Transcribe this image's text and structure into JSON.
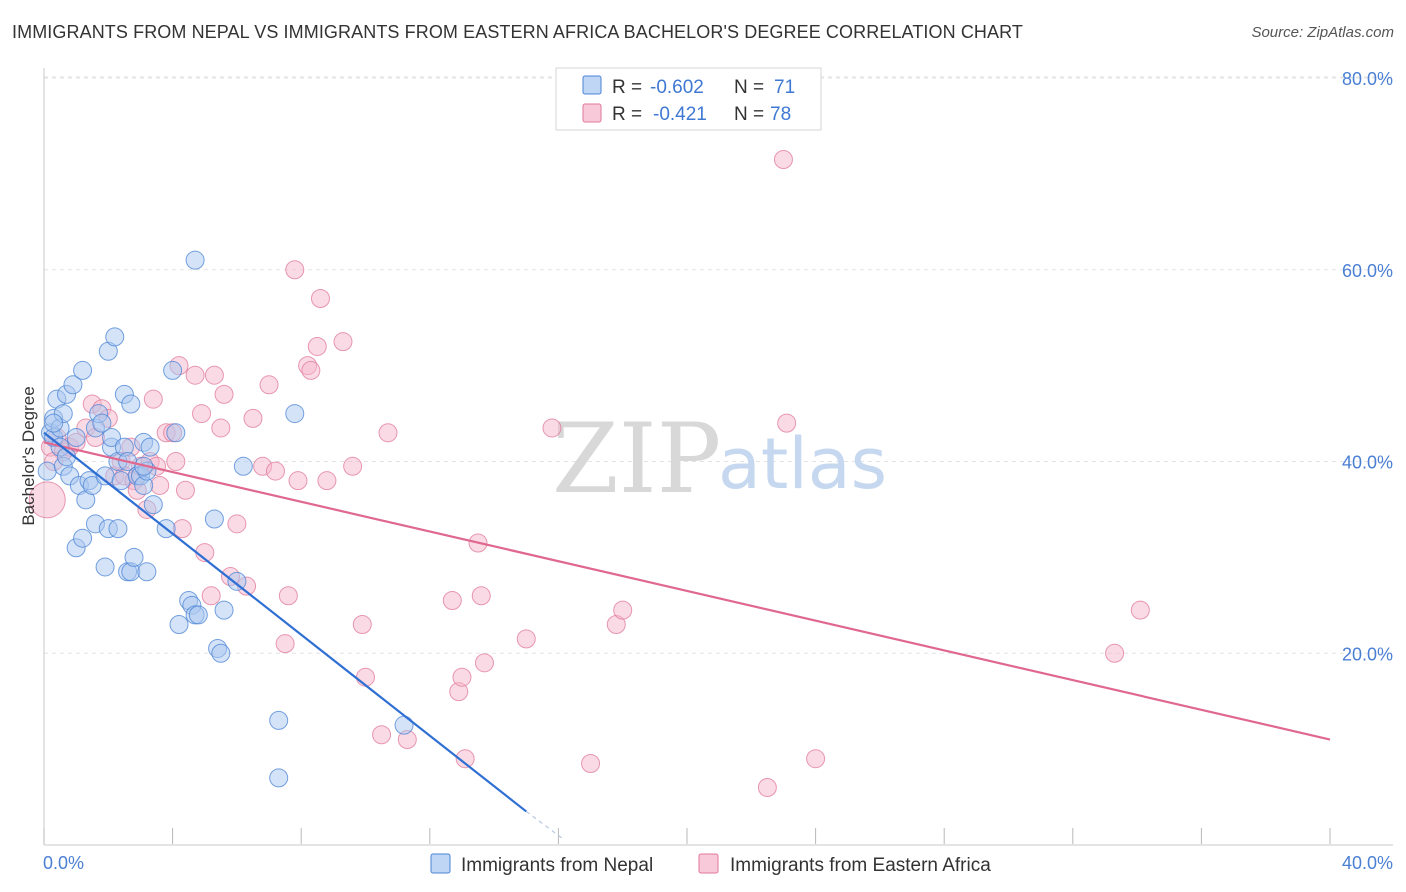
{
  "title": "IMMIGRANTS FROM NEPAL VS IMMIGRANTS FROM EASTERN AFRICA BACHELOR'S DEGREE CORRELATION CHART",
  "source": "Source: ZipAtlas.com",
  "watermark": {
    "zip": "ZIP",
    "atlas": "atlas"
  },
  "colors": {
    "nepal_fill": "#a9c8f0",
    "nepal_stroke": "#4a83d6",
    "nepal_line": "#2f6fd4",
    "africa_fill": "#f6b8cc",
    "africa_stroke": "#e07898",
    "africa_line": "#e0688f",
    "grid": "#e3e3e3",
    "tick_text": "#4a7fd4"
  },
  "legend": {
    "rows": [
      {
        "r_label": "R =",
        "r_value": "-0.602",
        "n_label": "N =",
        "n_value": "71"
      },
      {
        "r_label": "R =",
        "r_value": "-0.421",
        "n_label": "N =",
        "n_value": "78"
      }
    ]
  },
  "chart_data": {
    "type": "scatter",
    "title": "IMMIGRANTS FROM NEPAL VS IMMIGRANTS FROM EASTERN AFRICA BACHELOR'S DEGREE CORRELATION CHART",
    "xlabel": "",
    "ylabel": "Bachelor's Degree",
    "xlim": [
      0,
      40
    ],
    "ylim": [
      0,
      80
    ],
    "x_tick_labels": [
      "0.0%",
      "40.0%"
    ],
    "y_ticks": [
      20,
      40,
      60,
      80
    ],
    "y_tick_labels": [
      "20.0%",
      "40.0%",
      "60.0%",
      "80.0%"
    ],
    "series": [
      {
        "name": "Immigrants from Nepal",
        "r": -0.602,
        "n": 71,
        "trend": {
          "x0": 0.0,
          "y0": 43.0,
          "x1": 15.0,
          "y1": 3.5,
          "dash_to_x": 16.2,
          "dash_to_y": 0.5
        },
        "points": [
          [
            0.1,
            39.0,
            1
          ],
          [
            0.2,
            43.0,
            1
          ],
          [
            0.3,
            42.5,
            1
          ],
          [
            0.3,
            44.5,
            1
          ],
          [
            0.4,
            46.5,
            1
          ],
          [
            0.5,
            43.5,
            1
          ],
          [
            0.5,
            41.5,
            1
          ],
          [
            0.6,
            45.0,
            1
          ],
          [
            0.6,
            39.5,
            1
          ],
          [
            0.7,
            47.0,
            1
          ],
          [
            0.7,
            40.5,
            1
          ],
          [
            0.8,
            38.5,
            1
          ],
          [
            0.9,
            48.0,
            1
          ],
          [
            1.0,
            42.5,
            1
          ],
          [
            1.0,
            31.0,
            1
          ],
          [
            1.1,
            37.5,
            1
          ],
          [
            1.2,
            49.5,
            1
          ],
          [
            1.2,
            32.0,
            1
          ],
          [
            1.3,
            36.0,
            1
          ],
          [
            1.4,
            38.0,
            1
          ],
          [
            1.5,
            37.5,
            1
          ],
          [
            1.6,
            43.5,
            1
          ],
          [
            1.6,
            33.5,
            1
          ],
          [
            1.7,
            45.0,
            1
          ],
          [
            1.8,
            44.0,
            1
          ],
          [
            1.9,
            38.5,
            1
          ],
          [
            1.9,
            29.0,
            1
          ],
          [
            2.0,
            33.0,
            1
          ],
          [
            2.0,
            51.5,
            1
          ],
          [
            2.1,
            41.5,
            1
          ],
          [
            2.1,
            42.5,
            1
          ],
          [
            2.2,
            53.0,
            1
          ],
          [
            2.3,
            40.0,
            1
          ],
          [
            2.3,
            33.0,
            1
          ],
          [
            2.4,
            38.0,
            1
          ],
          [
            2.5,
            47.0,
            1
          ],
          [
            2.5,
            41.5,
            1
          ],
          [
            2.6,
            28.5,
            1
          ],
          [
            2.6,
            40.0,
            1
          ],
          [
            2.7,
            46.0,
            1
          ],
          [
            2.7,
            28.5,
            1
          ],
          [
            2.8,
            30.0,
            1
          ],
          [
            2.9,
            38.5,
            1
          ],
          [
            3.0,
            38.5,
            1
          ],
          [
            3.1,
            37.5,
            1
          ],
          [
            3.2,
            39.0,
            1
          ],
          [
            3.1,
            39.5,
            1
          ],
          [
            3.2,
            28.5,
            1
          ],
          [
            3.1,
            42.0,
            1
          ],
          [
            3.3,
            41.5,
            1
          ],
          [
            3.4,
            35.5,
            1
          ],
          [
            3.8,
            33.0,
            1
          ],
          [
            4.0,
            49.5,
            1
          ],
          [
            4.1,
            43.0,
            1
          ],
          [
            4.2,
            23.0,
            1
          ],
          [
            4.5,
            25.5,
            1
          ],
          [
            4.6,
            25.0,
            1
          ],
          [
            4.7,
            24.0,
            1
          ],
          [
            4.8,
            24.0,
            1
          ],
          [
            4.7,
            61.0,
            1
          ],
          [
            5.3,
            34.0,
            1
          ],
          [
            5.4,
            20.5,
            1
          ],
          [
            5.5,
            20.0,
            1
          ],
          [
            5.6,
            24.5,
            1
          ],
          [
            6.0,
            27.5,
            1
          ],
          [
            6.2,
            39.5,
            1
          ],
          [
            7.3,
            13.0,
            1
          ],
          [
            7.3,
            7.0,
            1
          ],
          [
            7.8,
            45.0,
            1
          ],
          [
            11.2,
            12.5,
            1
          ],
          [
            0.3,
            44.0,
            1
          ]
        ]
      },
      {
        "name": "Immigrants from Eastern Africa",
        "r": -0.421,
        "n": 78,
        "trend": {
          "x0": 0.0,
          "y0": 42.0,
          "x1": 40.0,
          "y1": 11.0
        },
        "points": [
          [
            0.1,
            36.0,
            3
          ],
          [
            0.2,
            41.5,
            1
          ],
          [
            0.4,
            42.5,
            1
          ],
          [
            0.6,
            41.0,
            1
          ],
          [
            0.8,
            41.5,
            1
          ],
          [
            1.0,
            42.0,
            1
          ],
          [
            1.3,
            43.5,
            1
          ],
          [
            1.5,
            46.0,
            1
          ],
          [
            1.6,
            42.5,
            1
          ],
          [
            1.8,
            45.5,
            1
          ],
          [
            2.0,
            44.5,
            1
          ],
          [
            2.2,
            38.5,
            1
          ],
          [
            2.4,
            40.0,
            1
          ],
          [
            2.5,
            38.5,
            1
          ],
          [
            2.7,
            41.5,
            1
          ],
          [
            2.8,
            38.0,
            1
          ],
          [
            2.9,
            37.0,
            1
          ],
          [
            3.0,
            39.5,
            1
          ],
          [
            3.2,
            35.0,
            1
          ],
          [
            3.3,
            40.0,
            1
          ],
          [
            3.4,
            46.5,
            1
          ],
          [
            3.5,
            39.5,
            1
          ],
          [
            3.6,
            37.5,
            1
          ],
          [
            3.8,
            43.0,
            1
          ],
          [
            4.0,
            43.0,
            1
          ],
          [
            4.1,
            40.0,
            1
          ],
          [
            4.2,
            50.0,
            1
          ],
          [
            4.3,
            33.0,
            1
          ],
          [
            4.4,
            37.0,
            1
          ],
          [
            4.7,
            49.0,
            1
          ],
          [
            4.9,
            45.0,
            1
          ],
          [
            5.0,
            30.5,
            1
          ],
          [
            5.2,
            26.0,
            1
          ],
          [
            5.3,
            49.0,
            1
          ],
          [
            5.5,
            43.5,
            1
          ],
          [
            5.6,
            47.0,
            1
          ],
          [
            5.8,
            28.0,
            1
          ],
          [
            6.0,
            33.5,
            1
          ],
          [
            6.3,
            27.0,
            1
          ],
          [
            6.5,
            44.5,
            1
          ],
          [
            6.8,
            39.5,
            1
          ],
          [
            7.0,
            48.0,
            1
          ],
          [
            7.2,
            39.0,
            1
          ],
          [
            7.5,
            21.0,
            1
          ],
          [
            7.6,
            26.0,
            1
          ],
          [
            7.8,
            60.0,
            1
          ],
          [
            7.9,
            38.0,
            1
          ],
          [
            8.2,
            50.0,
            1
          ],
          [
            8.3,
            49.5,
            1
          ],
          [
            8.5,
            52.0,
            1
          ],
          [
            8.6,
            57.0,
            1
          ],
          [
            8.8,
            38.0,
            1
          ],
          [
            9.3,
            52.5,
            1
          ],
          [
            9.6,
            39.5,
            1
          ],
          [
            9.9,
            23.0,
            1
          ],
          [
            10.0,
            17.5,
            1
          ],
          [
            10.5,
            11.5,
            1
          ],
          [
            10.7,
            43.0,
            1
          ],
          [
            11.3,
            11.0,
            1
          ],
          [
            12.7,
            25.5,
            1
          ],
          [
            12.9,
            16.0,
            1
          ],
          [
            13.0,
            17.5,
            1
          ],
          [
            13.1,
            9.0,
            1
          ],
          [
            13.5,
            31.5,
            1
          ],
          [
            13.6,
            26.0,
            1
          ],
          [
            13.7,
            19.0,
            1
          ],
          [
            15.0,
            21.5,
            1
          ],
          [
            15.8,
            43.5,
            1
          ],
          [
            17.0,
            8.5,
            1
          ],
          [
            17.8,
            23.0,
            1
          ],
          [
            18.0,
            24.5,
            1
          ],
          [
            22.5,
            6.0,
            1
          ],
          [
            23.0,
            71.5,
            1
          ],
          [
            23.1,
            44.0,
            1
          ],
          [
            24.0,
            9.0,
            1
          ],
          [
            33.3,
            20.0,
            1
          ],
          [
            34.1,
            24.5,
            1
          ],
          [
            0.3,
            40.0,
            1
          ]
        ]
      }
    ]
  }
}
